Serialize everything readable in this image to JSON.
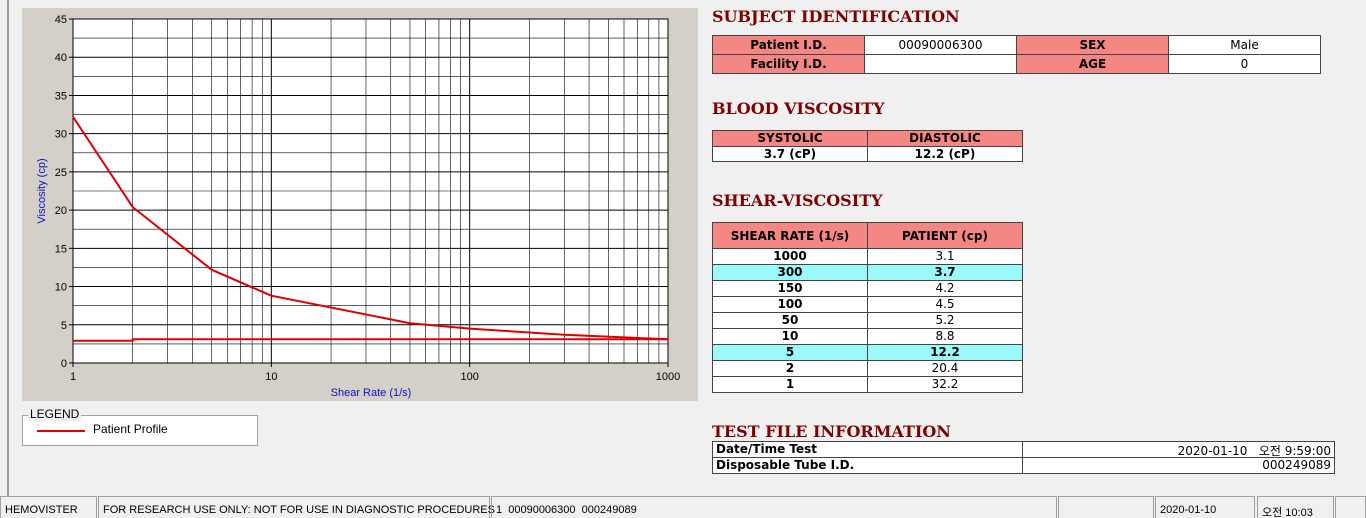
{
  "chart_data": {
    "type": "line",
    "x_label": "Shear Rate (1/s)",
    "y_label": "Viscosity (cp)",
    "log_x": true,
    "grid": true,
    "xlim": [
      1,
      1000
    ],
    "xticks": [
      1,
      10,
      100,
      1000
    ],
    "ylim": [
      0,
      45
    ],
    "yticks": [
      0,
      5,
      10,
      15,
      20,
      25,
      30,
      35,
      40,
      45
    ],
    "legend_title": "LEGEND",
    "series": [
      {
        "name": "Patient Profile",
        "color": "#e00000",
        "x": [
          1,
          2,
          5,
          10,
          50,
          100,
          150,
          300,
          1000
        ],
        "values": [
          32.2,
          20.4,
          12.2,
          8.8,
          5.2,
          4.5,
          4.2,
          3.7,
          3.1
        ]
      },
      {
        "color": "#e00000",
        "x": [
          1,
          2,
          2,
          1000
        ],
        "values": [
          2.9,
          2.9,
          3.1,
          3.1
        ]
      }
    ]
  },
  "subject_identification": {
    "title": "SUBJECT IDENTIFICATION",
    "fields": [
      {
        "label": "Patient I.D.",
        "value": "00090006300"
      },
      {
        "label": "SEX",
        "value": "Male"
      },
      {
        "label": "Facility I.D."
      },
      {
        "label": "AGE",
        "value": "0"
      }
    ]
  },
  "blood_viscosity": {
    "title": "BLOOD VISCOSITY",
    "columns": [
      "SYSTOLIC",
      "DIASTOLIC"
    ],
    "values": [
      "3.7 (cP)",
      "12.2 (cP)"
    ]
  },
  "shear_viscosity": {
    "title": "SHEAR-VISCOSITY",
    "columns": [
      "SHEAR RATE (1/s)",
      "PATIENT (cp)"
    ],
    "rows": [
      {
        "rate": 1000,
        "viscosity": 3.1
      },
      {
        "rate": 300,
        "viscosity": 3.7,
        "highlight": true
      },
      {
        "rate": 150,
        "viscosity": 4.2
      },
      {
        "rate": 100,
        "viscosity": 4.5
      },
      {
        "rate": 50,
        "viscosity": 5.2
      },
      {
        "rate": 10,
        "viscosity": 8.8
      },
      {
        "rate": 5,
        "viscosity": 12.2,
        "highlight": true
      },
      {
        "rate": 2,
        "viscosity": 20.4
      },
      {
        "rate": 1,
        "viscosity": 32.2
      }
    ]
  },
  "test_file": {
    "title": "TEST FILE INFORMATION",
    "rows": [
      {
        "label": "Date/Time Test",
        "value": "2020-01-10   오전 9:59:00"
      },
      {
        "label": "Disposable Tube I.D.",
        "value": "000249089"
      }
    ]
  },
  "status_bar": [
    "HEMOVISTER",
    "FOR RESEARCH USE ONLY: NOT FOR USE IN DIAGNOSTIC PROCEDURES",
    "1  00090006300  000249089",
    "2020-01-10",
    "오전 10:03"
  ]
}
